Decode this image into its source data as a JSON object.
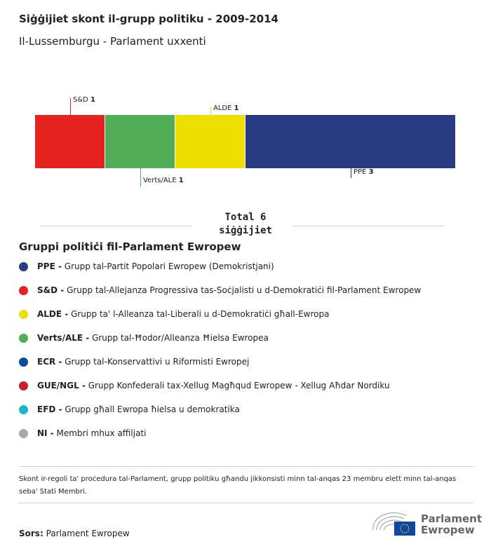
{
  "title": "Siġġijiet skont il-grupp politiku - 2009-2014",
  "subtitle": "Il-Lussemburgu - Parlament uxxenti",
  "chart_data": {
    "type": "stacked-bar",
    "categories": [
      "S&D",
      "Verts/ALE",
      "ALDE",
      "PPE"
    ],
    "values": [
      1,
      1,
      1,
      3
    ],
    "colors": [
      "#e52421",
      "#51ad57",
      "#ede000",
      "#2a3a83"
    ],
    "total_label": "Total 6 siġġijiet"
  },
  "legend": {
    "heading": "Gruppi politiċi fil-Parlament Ewropew",
    "items": [
      {
        "abbr": "PPE -",
        "desc": "Grupp tal-Partit Popolari Ewropew (Demokristjani)",
        "color": "#2a3a83"
      },
      {
        "abbr": "S&D -",
        "desc": "Grupp tal-Allejanza Progressiva tas-Soċjalisti u d-Demokratiċi fil-Parlament Ewropew",
        "color": "#e52421"
      },
      {
        "abbr": "ALDE -",
        "desc": "Grupp ta' l-Alleanza tal-Liberali u d-Demokratiċi għall-Ewropa",
        "color": "#ede000"
      },
      {
        "abbr": "Verts/ALE -",
        "desc": "Grupp tal-Ħodor/Alleanza Ħielsa Ewropea",
        "color": "#51ad57"
      },
      {
        "abbr": "ECR -",
        "desc": "Grupp tal-Konservattivi u Riformisti Ewropej",
        "color": "#0c4a9a"
      },
      {
        "abbr": "GUE/NGL -",
        "desc": "Grupp Konfederali tax-Xellug Magħqud Ewropew - Xellug Aħdar Nordiku",
        "color": "#c8202a"
      },
      {
        "abbr": "EFD -",
        "desc": "Grupp għall Ewropa ħielsa u demokratika",
        "color": "#1eb5c8"
      },
      {
        "abbr": "NI -",
        "desc": "Membri mhux affiljati",
        "color": "#a8a8a8"
      }
    ]
  },
  "note": "Skont ir-regoli ta' proċedura tal-Parlament, grupp politiku għandu jikkonsisti minn tal-anqas 23 membru elett minn tal-anqas seba' Stati Membri.",
  "source": {
    "label": "Sors:",
    "value": "Parlament Ewropew"
  },
  "logo": {
    "line1": "Parlament",
    "line2": "Ewropew"
  }
}
